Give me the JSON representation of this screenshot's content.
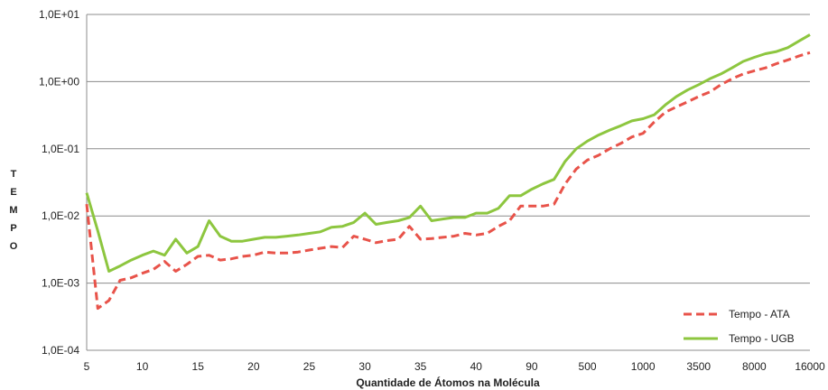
{
  "chart_data": {
    "type": "line",
    "title": "",
    "xlabel": "Quantidade  de Átomos na Molécula",
    "ylabel": "TEMPO",
    "y_scale": "log",
    "ylim": [
      0.0001,
      10
    ],
    "y_ticks": [
      "1,0E-04",
      "1,0E-03",
      "1,0E-02",
      "1,0E-01",
      "1,0E+00",
      "1,0E+01"
    ],
    "grid": true,
    "legend_position": "bottom-right",
    "x_tick_labels": [
      {
        "index": 0,
        "label": "5"
      },
      {
        "index": 5,
        "label": "10"
      },
      {
        "index": 10,
        "label": "15"
      },
      {
        "index": 15,
        "label": "20"
      },
      {
        "index": 20,
        "label": "25"
      },
      {
        "index": 25,
        "label": "30"
      },
      {
        "index": 30,
        "label": "35"
      },
      {
        "index": 35,
        "label": "40"
      },
      {
        "index": 40,
        "label": "90"
      },
      {
        "index": 45,
        "label": "500"
      },
      {
        "index": 50,
        "label": "1000"
      },
      {
        "index": 55,
        "label": "3500"
      },
      {
        "index": 60,
        "label": "8000"
      },
      {
        "index": 65,
        "label": "16000"
      }
    ],
    "series": [
      {
        "name": "Tempo - ATA",
        "color": "#E8534A",
        "style": "dashed",
        "values": [
          0.015,
          0.00042,
          0.00055,
          0.0011,
          0.0012,
          0.0014,
          0.0016,
          0.0021,
          0.0015,
          0.0019,
          0.0025,
          0.0026,
          0.0022,
          0.0023,
          0.0025,
          0.0026,
          0.0029,
          0.0028,
          0.0028,
          0.0029,
          0.0031,
          0.0033,
          0.0035,
          0.0034,
          0.005,
          0.0045,
          0.004,
          0.0043,
          0.0045,
          0.007,
          0.0045,
          0.0046,
          0.0048,
          0.005,
          0.0055,
          0.0052,
          0.0055,
          0.007,
          0.0085,
          0.014,
          0.014,
          0.014,
          0.015,
          0.03,
          0.05,
          0.068,
          0.08,
          0.1,
          0.12,
          0.15,
          0.17,
          0.25,
          0.35,
          0.42,
          0.5,
          0.6,
          0.7,
          0.9,
          1.1,
          1.3,
          1.45,
          1.6,
          1.85,
          2.1,
          2.4,
          2.7
        ]
      },
      {
        "name": "Tempo - UGB",
        "color": "#8DC63F",
        "style": "solid",
        "values": [
          0.022,
          0.006,
          0.0015,
          0.0018,
          0.0022,
          0.0026,
          0.003,
          0.0026,
          0.0045,
          0.0028,
          0.0035,
          0.0085,
          0.005,
          0.0042,
          0.0042,
          0.0045,
          0.0048,
          0.0048,
          0.005,
          0.0052,
          0.0055,
          0.0058,
          0.0068,
          0.007,
          0.008,
          0.011,
          0.0075,
          0.008,
          0.0085,
          0.0095,
          0.014,
          0.0085,
          0.009,
          0.0095,
          0.0095,
          0.011,
          0.011,
          0.013,
          0.02,
          0.02,
          0.025,
          0.03,
          0.035,
          0.065,
          0.1,
          0.13,
          0.16,
          0.19,
          0.22,
          0.26,
          0.28,
          0.32,
          0.45,
          0.6,
          0.75,
          0.9,
          1.1,
          1.3,
          1.6,
          2.0,
          2.3,
          2.6,
          2.8,
          3.2,
          4.0,
          5.0
        ]
      }
    ]
  }
}
